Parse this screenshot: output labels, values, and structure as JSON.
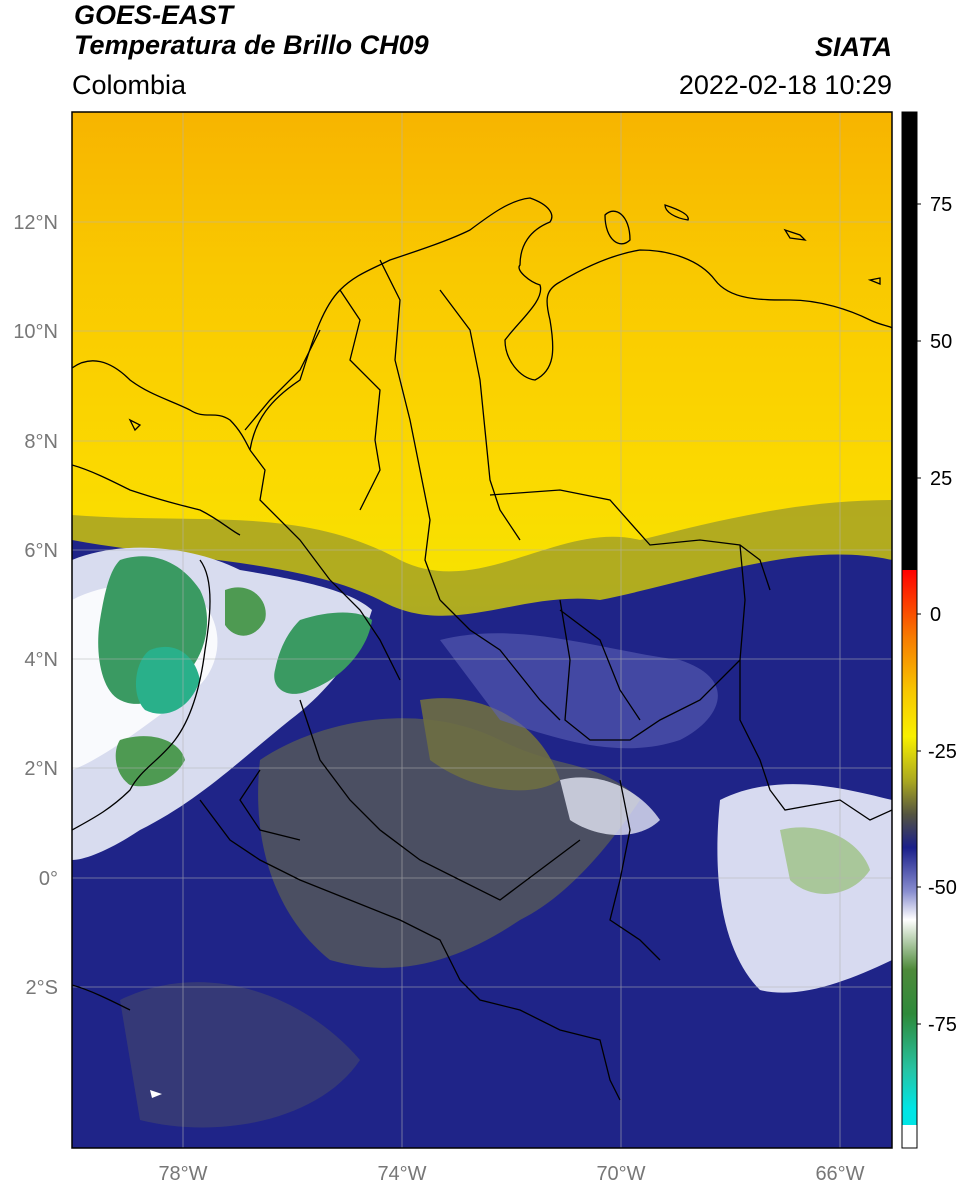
{
  "header": {
    "satellite": "GOES-EAST",
    "product": "Temperatura de Brillo CH09",
    "region": "Colombia",
    "org": "SIATA",
    "datetime": "2022-02-18 10:29"
  },
  "map": {
    "lon_ticks": [
      "78°W",
      "74°W",
      "70°W",
      "66°W"
    ],
    "lat_ticks": [
      "12°N",
      "10°N",
      "8°N",
      "6°N",
      "4°N",
      "2°N",
      "0°",
      "2°S"
    ]
  },
  "colorbar": {
    "ticks": [
      "75",
      "50",
      "25",
      "0",
      "-25",
      "-50",
      "-75"
    ],
    "colors": {
      "black": "#000000",
      "red": "#e8000a",
      "orange": "#f7a700",
      "yellow": "#f8f000",
      "olive": "#6f6f30",
      "navy": "#1a1f8a",
      "white": "#ffffff",
      "green": "#2e7d2a",
      "teal": "#27c3a3",
      "cyan": "#00e5e5"
    }
  }
}
